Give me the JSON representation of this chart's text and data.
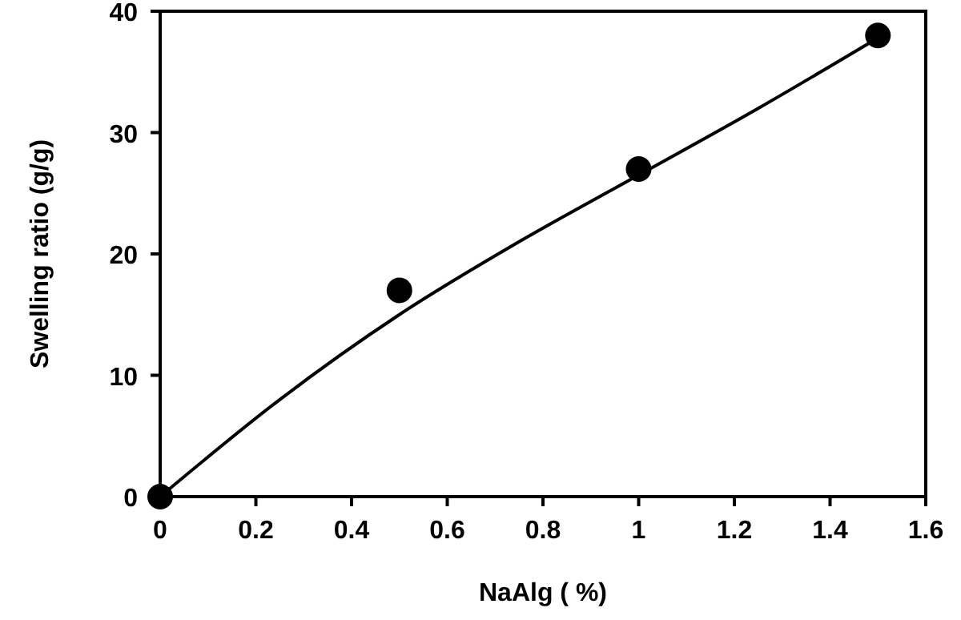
{
  "chart_data": {
    "type": "scatter",
    "xlabel": "NaAlg ( %)",
    "ylabel": "Swelling ratio (g/g)",
    "xlim": [
      0,
      1.6
    ],
    "ylim": [
      0,
      40
    ],
    "xticks": [
      0,
      0.2,
      0.4,
      0.6,
      0.8,
      1,
      1.2,
      1.4,
      1.6
    ],
    "yticks": [
      0,
      10,
      20,
      30,
      40
    ],
    "grid": false,
    "series": [
      {
        "color": "#000000",
        "marker": "circle",
        "x": [
          0,
          0.5,
          1,
          1.5
        ],
        "values": [
          0,
          17,
          27,
          38
        ]
      },
      {
        "type": "line",
        "color": "#000000",
        "marker": "none",
        "x": [
          0,
          0.25,
          0.5,
          0.75,
          1,
          1.25,
          1.5
        ],
        "values": [
          0,
          8,
          15,
          21,
          26.5,
          32,
          37.8
        ]
      }
    ]
  }
}
